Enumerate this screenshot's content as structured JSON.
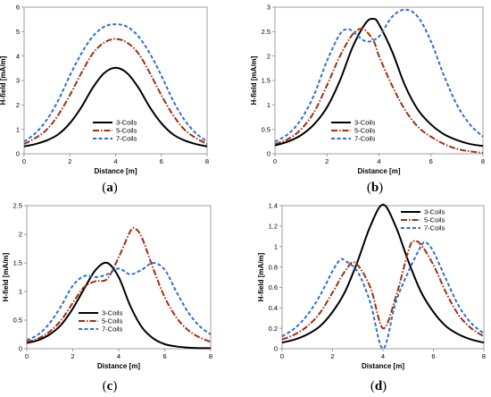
{
  "chart_data": [
    {
      "type": "line",
      "caption": "a",
      "xlabel": "Distance [m]",
      "ylabel": "H-field [mA/m]",
      "xlim": [
        0,
        8
      ],
      "ylim": [
        0,
        6
      ],
      "xticks": [
        "0",
        "2",
        "4",
        "6",
        "8"
      ],
      "yticks": [
        "0",
        "1",
        "2",
        "3",
        "4",
        "5",
        "6"
      ],
      "legend_position": "center-bottom",
      "series": [
        {
          "name": "3-Coils",
          "color": "#000000",
          "dash": "solid",
          "x": [
            0,
            0.5,
            1,
            1.5,
            2,
            2.5,
            3,
            3.5,
            4,
            4.5,
            5,
            5.5,
            6,
            6.5,
            7,
            7.5,
            8
          ],
          "y": [
            0.3,
            0.4,
            0.55,
            0.8,
            1.25,
            1.9,
            2.7,
            3.3,
            3.52,
            3.3,
            2.7,
            1.9,
            1.25,
            0.8,
            0.55,
            0.4,
            0.3
          ]
        },
        {
          "name": "5-Coils",
          "color": "#a0300f",
          "dash": "dashdot",
          "x": [
            0,
            0.5,
            1,
            1.5,
            2,
            2.5,
            3,
            3.5,
            4,
            4.5,
            5,
            5.5,
            6,
            6.5,
            7,
            7.5,
            8
          ],
          "y": [
            0.4,
            0.65,
            1.0,
            1.6,
            2.4,
            3.3,
            4.1,
            4.55,
            4.7,
            4.55,
            4.1,
            3.3,
            2.4,
            1.6,
            1.0,
            0.65,
            0.4
          ]
        },
        {
          "name": "7-Coils",
          "color": "#2f6fd0",
          "dash": "dashed",
          "x": [
            0,
            0.5,
            1,
            1.5,
            2,
            2.5,
            3,
            3.5,
            4,
            4.5,
            5,
            5.5,
            6,
            6.5,
            7,
            7.5,
            8
          ],
          "y": [
            0.5,
            0.85,
            1.4,
            2.2,
            3.2,
            4.1,
            4.8,
            5.2,
            5.3,
            5.2,
            4.8,
            4.1,
            3.2,
            2.2,
            1.4,
            0.85,
            0.5
          ]
        }
      ]
    },
    {
      "type": "line",
      "caption": "b",
      "xlabel": "Distance [m]",
      "ylabel": "H-field [mA/m]",
      "xlim": [
        0,
        8
      ],
      "ylim": [
        0,
        3
      ],
      "xticks": [
        "0",
        "2",
        "4",
        "6",
        "8"
      ],
      "yticks": [
        "0",
        "0.5",
        "1",
        "1.5",
        "2",
        "2.5",
        "3"
      ],
      "legend_position": "center-bottom",
      "series": [
        {
          "name": "3-Coils",
          "color": "#000000",
          "dash": "solid",
          "x": [
            0,
            0.5,
            1,
            1.5,
            2,
            2.5,
            3,
            3.5,
            3.8,
            4,
            4.5,
            5,
            5.5,
            6,
            6.5,
            7,
            7.5,
            8
          ],
          "y": [
            0.17,
            0.25,
            0.38,
            0.6,
            0.95,
            1.5,
            2.2,
            2.68,
            2.76,
            2.65,
            2.1,
            1.4,
            0.9,
            0.6,
            0.4,
            0.28,
            0.2,
            0.16
          ]
        },
        {
          "name": "5-Coils",
          "color": "#a0300f",
          "dash": "dashdot",
          "x": [
            0,
            0.5,
            1,
            1.5,
            2,
            2.5,
            3,
            3.4,
            3.8,
            4,
            4.5,
            5,
            5.5,
            6,
            6.5,
            7,
            7.5,
            8
          ],
          "y": [
            0.2,
            0.3,
            0.5,
            0.85,
            1.4,
            2.0,
            2.45,
            2.55,
            2.3,
            2.0,
            1.4,
            0.9,
            0.55,
            0.35,
            0.2,
            0.1,
            0.05,
            0.02
          ]
        },
        {
          "name": "7-Coils",
          "color": "#2f6fd0",
          "dash": "dashed",
          "x": [
            0,
            0.5,
            1,
            1.5,
            2,
            2.5,
            2.8,
            3,
            3.5,
            4,
            4.5,
            5,
            5.5,
            6,
            6.5,
            7,
            7.5,
            8
          ],
          "y": [
            0.25,
            0.4,
            0.7,
            1.2,
            1.9,
            2.45,
            2.55,
            2.5,
            2.3,
            2.4,
            2.8,
            2.95,
            2.8,
            2.3,
            1.6,
            1.0,
            0.6,
            0.35
          ]
        }
      ]
    },
    {
      "type": "line",
      "caption": "c",
      "xlabel": "Distance [m]",
      "ylabel": "H-field [mA/m]",
      "xlim": [
        0,
        8
      ],
      "ylim": [
        0,
        2.5
      ],
      "xticks": [
        "0",
        "2",
        "4",
        "6",
        "8"
      ],
      "yticks": [
        "0",
        "0.5",
        "1",
        "1.5",
        "2",
        "2.5"
      ],
      "legend_position": "center-bottom",
      "series": [
        {
          "name": "3-Coils",
          "color": "#000000",
          "dash": "solid",
          "x": [
            0,
            0.5,
            1,
            1.5,
            2,
            2.5,
            3,
            3.5,
            4,
            4.5,
            5,
            5.5,
            6,
            6.5,
            7,
            7.5,
            8
          ],
          "y": [
            0.1,
            0.15,
            0.25,
            0.42,
            0.7,
            1.05,
            1.38,
            1.5,
            1.25,
            0.75,
            0.38,
            0.18,
            0.08,
            0.04,
            0.02,
            0.01,
            0.01
          ]
        },
        {
          "name": "5-Coils",
          "color": "#a0300f",
          "dash": "dashdot",
          "x": [
            0,
            0.5,
            1,
            1.5,
            2,
            2.5,
            3,
            3.5,
            4,
            4.5,
            4.7,
            5,
            5.5,
            6,
            6.5,
            7,
            7.5,
            8
          ],
          "y": [
            0.12,
            0.18,
            0.3,
            0.5,
            0.8,
            1.08,
            1.18,
            1.22,
            1.6,
            2.05,
            2.1,
            1.95,
            1.4,
            0.9,
            0.55,
            0.33,
            0.2,
            0.12
          ]
        },
        {
          "name": "7-Coils",
          "color": "#2f6fd0",
          "dash": "dashed",
          "x": [
            0,
            0.5,
            1,
            1.5,
            2,
            2.5,
            3,
            3.5,
            4,
            4.5,
            5,
            5.5,
            6,
            6.5,
            7,
            7.5,
            8
          ],
          "y": [
            0.15,
            0.25,
            0.45,
            0.75,
            1.1,
            1.27,
            1.25,
            1.3,
            1.4,
            1.3,
            1.38,
            1.5,
            1.38,
            1.0,
            0.65,
            0.4,
            0.25
          ]
        }
      ]
    },
    {
      "type": "line",
      "caption": "d",
      "xlabel": "Distance [m]",
      "ylabel": "H-field [mA/m]",
      "xlim": [
        0,
        8
      ],
      "ylim": [
        0,
        1.4
      ],
      "xticks": [
        "0",
        "2",
        "4",
        "6",
        "8"
      ],
      "yticks": [
        "0",
        "0.2",
        "0.4",
        "0.6",
        "0.8",
        "1",
        "1.2",
        "1.4"
      ],
      "legend_position": "top-right",
      "series": [
        {
          "name": "3-Coils",
          "color": "#000000",
          "dash": "solid",
          "x": [
            0,
            0.5,
            1,
            1.5,
            2,
            2.5,
            3,
            3.5,
            4,
            4.5,
            5,
            5.5,
            6,
            6.5,
            7,
            7.5,
            8
          ],
          "y": [
            0.06,
            0.09,
            0.14,
            0.22,
            0.36,
            0.56,
            0.86,
            1.2,
            1.41,
            1.2,
            0.86,
            0.56,
            0.36,
            0.22,
            0.14,
            0.09,
            0.06
          ]
        },
        {
          "name": "5-Coils",
          "color": "#a0300f",
          "dash": "dashdot",
          "x": [
            0,
            0.5,
            1,
            1.5,
            2,
            2.5,
            2.9,
            3.5,
            4,
            4.5,
            5,
            5.2,
            5.5,
            6,
            6.5,
            7,
            7.5,
            8
          ],
          "y": [
            0.09,
            0.14,
            0.22,
            0.35,
            0.55,
            0.76,
            0.84,
            0.6,
            0.2,
            0.5,
            0.95,
            1.05,
            1.02,
            0.82,
            0.55,
            0.33,
            0.2,
            0.12
          ]
        },
        {
          "name": "7-Coils",
          "color": "#2f6fd0",
          "dash": "dashed",
          "x": [
            0,
            0.5,
            1,
            1.5,
            2,
            2.3,
            2.5,
            3,
            3.5,
            4,
            4.5,
            5,
            5.5,
            5.7,
            6,
            6.5,
            7,
            7.5,
            8
          ],
          "y": [
            0.12,
            0.2,
            0.33,
            0.52,
            0.76,
            0.87,
            0.86,
            0.75,
            0.45,
            0.0,
            0.45,
            0.75,
            1.0,
            1.04,
            0.95,
            0.68,
            0.42,
            0.25,
            0.15
          ]
        }
      ]
    }
  ]
}
